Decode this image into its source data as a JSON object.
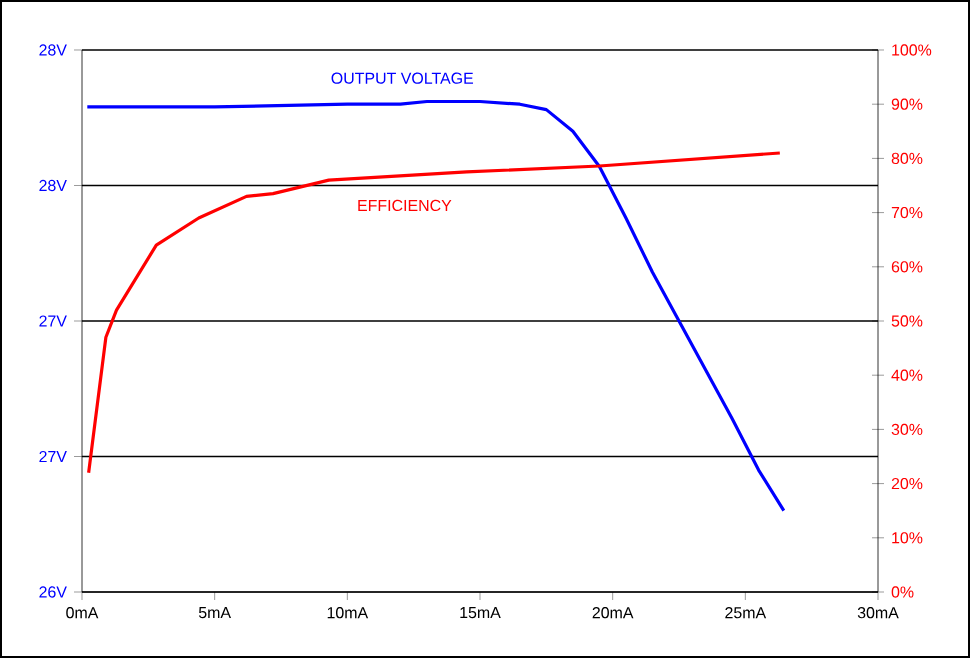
{
  "chart_data": {
    "type": "line",
    "xlim": [
      0,
      30
    ],
    "xticks": [
      {
        "value": 0,
        "label": "0mA"
      },
      {
        "value": 5,
        "label": "5mA"
      },
      {
        "value": 10,
        "label": "10mA"
      },
      {
        "value": 15,
        "label": "15mA"
      },
      {
        "value": 20,
        "label": "20mA"
      },
      {
        "value": 25,
        "label": "25mA"
      },
      {
        "value": 30,
        "label": "30mA"
      }
    ],
    "ylim": [
      26,
      28
    ],
    "yticks": [
      {
        "value": 26,
        "label": "26V"
      },
      {
        "value": 26.5,
        "label": "27V"
      },
      {
        "value": 27,
        "label": "27V"
      },
      {
        "value": 27.5,
        "label": "28V"
      },
      {
        "value": 28,
        "label": "28V"
      }
    ],
    "y2lim": [
      0,
      100
    ],
    "y2ticks": [
      {
        "value": 0,
        "label": "0%"
      },
      {
        "value": 10,
        "label": "10%"
      },
      {
        "value": 20,
        "label": "20%"
      },
      {
        "value": 30,
        "label": "30%"
      },
      {
        "value": 40,
        "label": "40%"
      },
      {
        "value": 50,
        "label": "50%"
      },
      {
        "value": 60,
        "label": "60%"
      },
      {
        "value": 70,
        "label": "70%"
      },
      {
        "value": 80,
        "label": "80%"
      },
      {
        "value": 90,
        "label": "90%"
      },
      {
        "value": 100,
        "label": "100%"
      }
    ],
    "grid": "y",
    "marker": "none",
    "line_style": "solid",
    "series": [
      {
        "name": "OUTPUT VOLTAGE",
        "color": "#0000ff",
        "x": [
          0.2,
          5,
          10,
          12,
          13,
          15,
          16.5,
          17.5,
          18.5,
          19.5,
          20.5,
          21.5,
          22.5,
          23.5,
          24.5,
          25.5,
          26.45
        ],
        "values": [
          27.79,
          27.79,
          27.8,
          27.8,
          27.81,
          27.81,
          27.8,
          27.78,
          27.7,
          27.57,
          27.38,
          27.18,
          27.0,
          26.82,
          26.64,
          26.45,
          26.3
        ]
      },
      {
        "name": "EFFICIENCY",
        "color": "#ff0000",
        "axis": "y2",
        "x": [
          0.25,
          0.9,
          1.3,
          2.8,
          4.4,
          6.2,
          7.2,
          9.3,
          14.5,
          19.5,
          26.3
        ],
        "values": [
          22,
          47,
          52,
          64,
          69,
          73,
          73.5,
          76,
          77.5,
          78.6,
          81
        ]
      }
    ]
  }
}
